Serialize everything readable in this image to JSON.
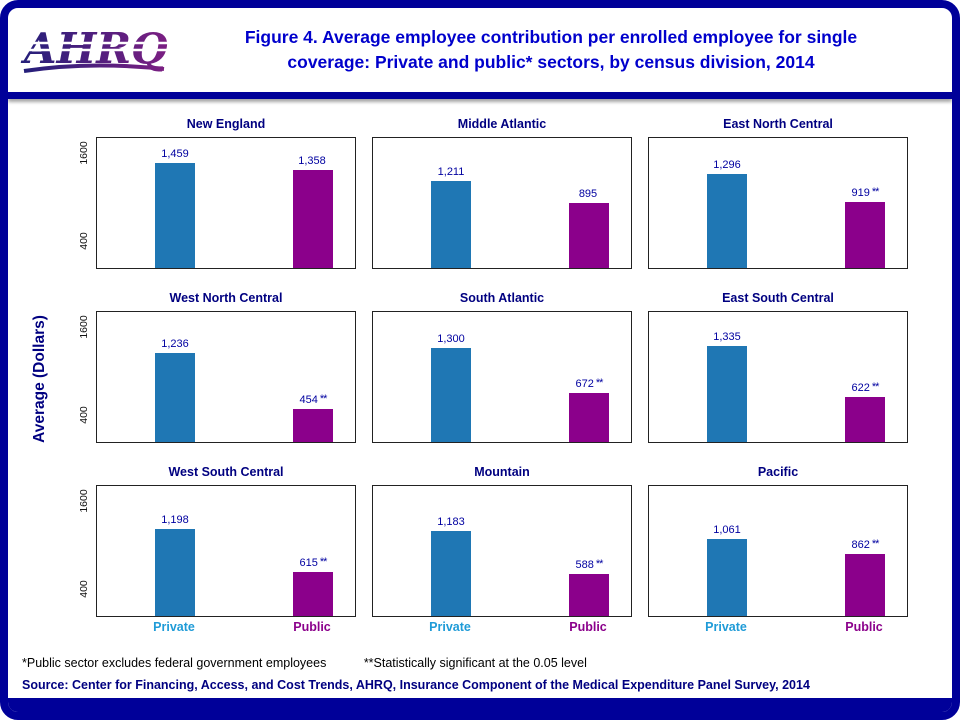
{
  "header": {
    "logo_text": "AHRQ",
    "title_line1": "Figure 4. Average employee contribution per enrolled employee for single",
    "title_line2": "coverage: Private and public* sectors, by census division, 2014"
  },
  "axis": {
    "ylabel": "Average (Dollars)",
    "tick_top": "1600",
    "tick_bottom": "400",
    "x_private": "Private",
    "x_public": "Public"
  },
  "footnotes": {
    "note1": "*Public sector excludes federal government employees",
    "note2": "**Statistically significant at the 0.05 level"
  },
  "source": "Source: Center for Financing, Access, and Cost Trends, AHRQ, Insurance Component of the Medical Expenditure Panel Survey, 2014",
  "chart_data": {
    "type": "bar",
    "title": "Figure 4. Average employee contribution per enrolled employee for single coverage: Private and public* sectors, by census division, 2014",
    "ylabel": "Average (Dollars)",
    "ylim": [
      0,
      1800
    ],
    "yticks": [
      400,
      1600
    ],
    "categories": [
      "Private",
      "Public"
    ],
    "colors": {
      "private": "#1F77B4",
      "public": "#8B008B",
      "frame_navy": "#000099",
      "title_blue": "#0000CC"
    },
    "panels": [
      {
        "title": "New England",
        "private": 1459,
        "public": 1358,
        "private_label": "1,459",
        "public_label": "1,358",
        "public_marker": ""
      },
      {
        "title": "Middle Atlantic",
        "private": 1211,
        "public": 895,
        "private_label": "1,211",
        "public_label": "895",
        "public_marker": ""
      },
      {
        "title": "East North Central",
        "private": 1296,
        "public": 919,
        "private_label": "1,296",
        "public_label": "919",
        "public_marker": "**"
      },
      {
        "title": "West North Central",
        "private": 1236,
        "public": 454,
        "private_label": "1,236",
        "public_label": "454",
        "public_marker": "**"
      },
      {
        "title": "South Atlantic",
        "private": 1300,
        "public": 672,
        "private_label": "1,300",
        "public_label": "672",
        "public_marker": "**"
      },
      {
        "title": "East South Central",
        "private": 1335,
        "public": 622,
        "private_label": "1,335",
        "public_label": "622",
        "public_marker": "**"
      },
      {
        "title": "West South Central",
        "private": 1198,
        "public": 615,
        "private_label": "1,198",
        "public_label": "615",
        "public_marker": "**"
      },
      {
        "title": "Mountain",
        "private": 1183,
        "public": 588,
        "private_label": "1,183",
        "public_label": "588",
        "public_marker": "**"
      },
      {
        "title": "Pacific",
        "private": 1061,
        "public": 862,
        "private_label": "1,061",
        "public_label": "862",
        "public_marker": "**"
      }
    ]
  }
}
